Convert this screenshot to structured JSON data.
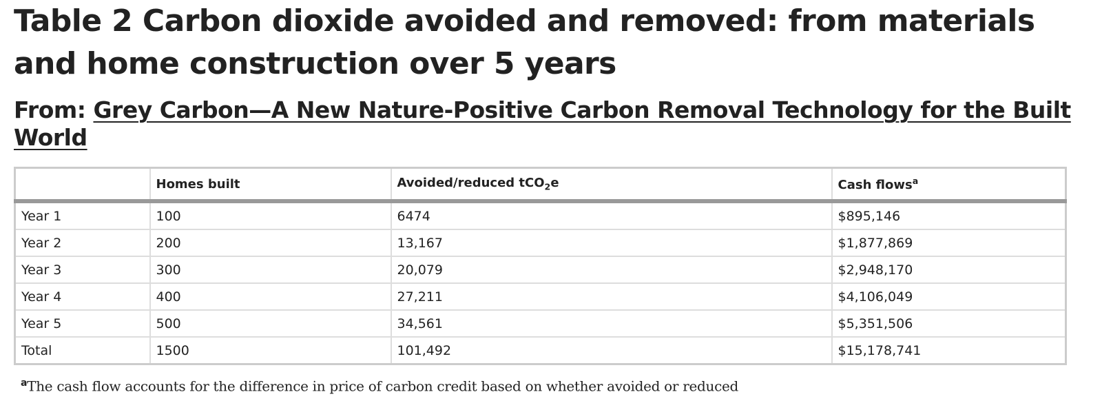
{
  "title": "Table 2 Carbon dioxide avoided and removed: from materials and home construction over 5 years",
  "source": {
    "prefix": "From:",
    "link": "Grey Carbon—A New Nature-Positive Carbon Removal Technology for the Built World"
  },
  "table": {
    "headers": [
      {
        "text": "Homes built"
      },
      {
        "text": "Avoided/reduced tCO",
        "sub": "2",
        "after": "e"
      },
      {
        "text": "Cash flows",
        "sup": "a"
      }
    ],
    "rows": [
      [
        "Year 1",
        "100",
        "6474",
        "$895,146"
      ],
      [
        "Year 2",
        "200",
        "13,167",
        "$1,877,869"
      ],
      [
        "Year 3",
        "300",
        "20,079",
        "$2,948,170"
      ],
      [
        "Year 4",
        "400",
        "27,211",
        "$4,106,049"
      ],
      [
        "Year 5",
        "500",
        "34,561",
        "$5,351,506"
      ],
      [
        "Total",
        "1500",
        "101,492",
        "$15,178,741"
      ]
    ]
  },
  "footnote": {
    "marker": "a",
    "text": "The cash flow accounts for the difference in price of carbon credit based on whether avoided or reduced"
  }
}
